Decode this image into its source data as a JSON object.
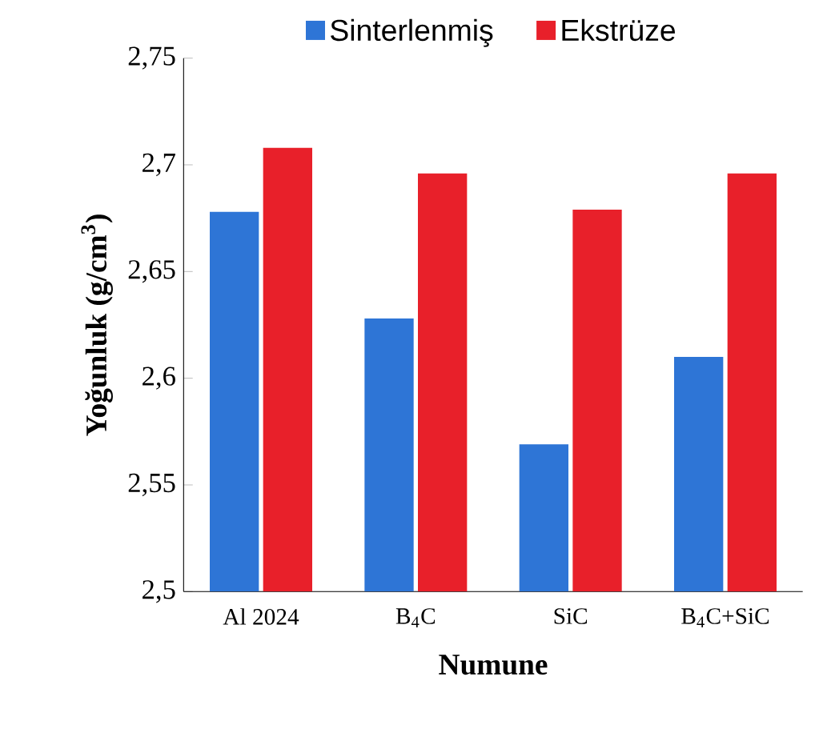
{
  "chart_data": {
    "type": "bar",
    "xlabel": "Numune",
    "ylabel": "Yoğunluk (g/cm$^{3}$)",
    "categories": [
      "Al 2024",
      "B$_{4}$C",
      "SiC",
      "B$_{4}$C+SiC"
    ],
    "series": [
      {
        "name": "Sinterlenmiş",
        "color": "#2e75d6",
        "values": [
          2.678,
          2.628,
          2.569,
          2.61
        ]
      },
      {
        "name": "Ekstrüze",
        "color": "#e8202a",
        "values": [
          2.708,
          2.696,
          2.679,
          2.696
        ]
      }
    ],
    "ylim": [
      2.5,
      2.75
    ],
    "yticks": [
      {
        "value": 2.5,
        "label": "2,5"
      },
      {
        "value": 2.55,
        "label": "2,55"
      },
      {
        "value": 2.6,
        "label": "2,6"
      },
      {
        "value": 2.65,
        "label": "2,65"
      },
      {
        "value": 2.7,
        "label": "2,7"
      },
      {
        "value": 2.75,
        "label": "2,75"
      }
    ],
    "legend": "top",
    "grid": false
  }
}
